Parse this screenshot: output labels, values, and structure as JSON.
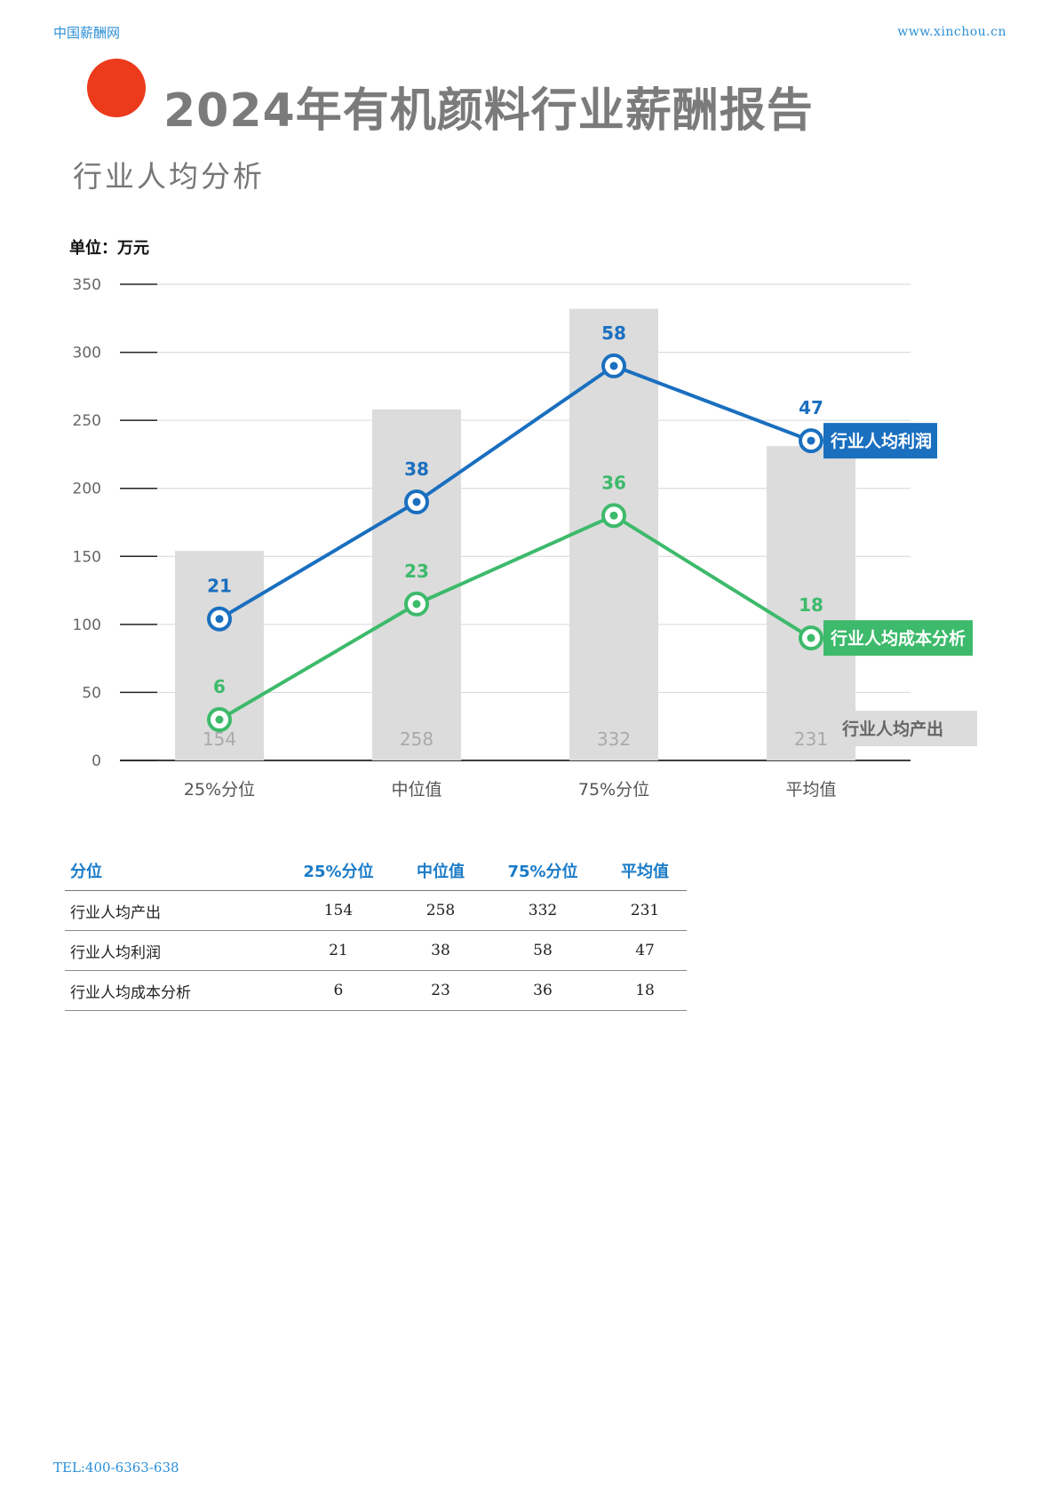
{
  "header": {
    "brand": "中国薪酬网",
    "url": "www.xinchou.cn"
  },
  "title": "2024年有机颜料行业薪酬报告",
  "subtitle": "行业人均分析",
  "unit_label": "单位：万元",
  "colors": {
    "accent_red": "#ec3a1c",
    "profit_blue": "#1a6fbf",
    "cost_green": "#3dba6b",
    "bar_gray": "#dcdcdc",
    "table_header_blue": "#1a7bc7"
  },
  "chart_data": {
    "type": "bar",
    "categories": [
      "25%分位",
      "中位值",
      "75%分位",
      "平均值"
    ],
    "ylim": [
      0,
      350
    ],
    "yticks": [
      0,
      50,
      100,
      150,
      200,
      250,
      300,
      350
    ],
    "grid": true,
    "series": [
      {
        "name": "行业人均产出",
        "type": "bar",
        "values": [
          154,
          258,
          332,
          231
        ]
      },
      {
        "name": "行业人均利润",
        "type": "line",
        "values": [
          21,
          38,
          58,
          47
        ],
        "plot_values": [
          104,
          190,
          290,
          235
        ]
      },
      {
        "name": "行业人均成本分析",
        "type": "line",
        "values": [
          6,
          23,
          36,
          18
        ],
        "plot_values": [
          30,
          115,
          180,
          90
        ]
      }
    ]
  },
  "table": {
    "headers": [
      "分位",
      "25%分位",
      "中位值",
      "75%分位",
      "平均值"
    ],
    "rows": [
      [
        "行业人均产出",
        "154",
        "258",
        "332",
        "231"
      ],
      [
        "行业人均利润",
        "21",
        "38",
        "58",
        "47"
      ],
      [
        "行业人均成本分析",
        "6",
        "23",
        "36",
        "18"
      ]
    ]
  },
  "footer": {
    "tel": "TEL:400-6363-638"
  }
}
